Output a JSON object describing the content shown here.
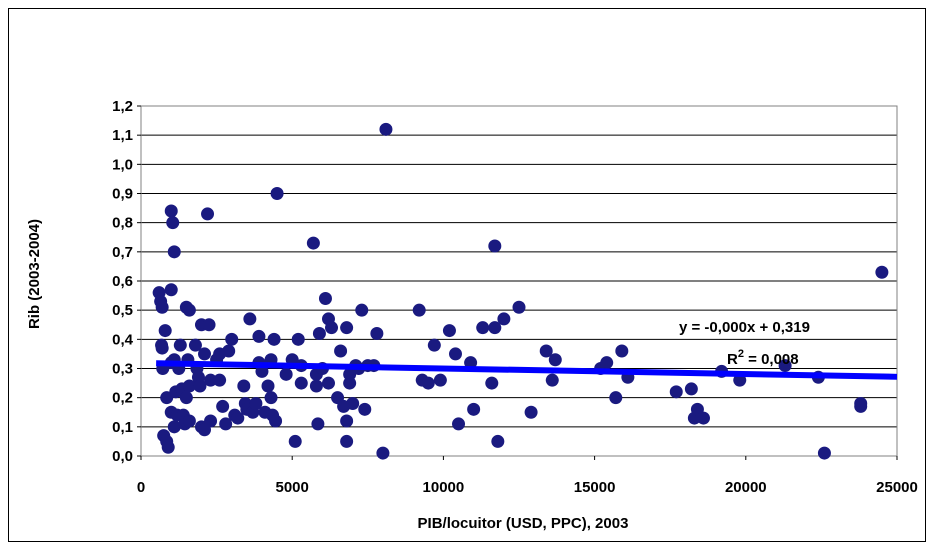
{
  "chart_data": {
    "type": "scatter",
    "title": "",
    "xlabel": "PIB/locuitor (USD, PPC), 2003",
    "ylabel": "Rib (2003-2004)",
    "xlim": [
      0,
      25000
    ],
    "ylim": [
      0,
      1.2
    ],
    "x_ticks": [
      "0",
      "5000",
      "10000",
      "15000",
      "20000",
      "25000"
    ],
    "y_ticks": [
      "0,0",
      "0,1",
      "0,2",
      "0,3",
      "0,4",
      "0,5",
      "0,6",
      "0,7",
      "0,8",
      "0,9",
      "1,0",
      "1,1",
      "1,2"
    ],
    "grid": "horizontal",
    "colors": {
      "points": "#1a1a80",
      "trendline": "#0000ff"
    },
    "trendline": {
      "equation": "y = -0,000x + 0,319",
      "r2_label": "R",
      "r2_sup": "2",
      "r2_value": " = 0,008",
      "intercept": 0.319,
      "slope": -1.9e-06
    },
    "points": [
      [
        600,
        0.56
      ],
      [
        650,
        0.53
      ],
      [
        700,
        0.51
      ],
      [
        680,
        0.38
      ],
      [
        700,
        0.37
      ],
      [
        720,
        0.3
      ],
      [
        750,
        0.07
      ],
      [
        800,
        0.43
      ],
      [
        850,
        0.05
      ],
      [
        900,
        0.03
      ],
      [
        850,
        0.2
      ],
      [
        1000,
        0.84
      ],
      [
        1050,
        0.8
      ],
      [
        1100,
        0.7
      ],
      [
        1000,
        0.57
      ],
      [
        1000,
        0.32
      ],
      [
        1100,
        0.33
      ],
      [
        1150,
        0.22
      ],
      [
        1000,
        0.15
      ],
      [
        1100,
        0.1
      ],
      [
        1200,
        0.14
      ],
      [
        1250,
        0.3
      ],
      [
        1300,
        0.38
      ],
      [
        1350,
        0.23
      ],
      [
        1400,
        0.14
      ],
      [
        1450,
        0.11
      ],
      [
        1500,
        0.12
      ],
      [
        1500,
        0.51
      ],
      [
        1600,
        0.5
      ],
      [
        1550,
        0.33
      ],
      [
        1600,
        0.24
      ],
      [
        1500,
        0.2
      ],
      [
        1600,
        0.12
      ],
      [
        1800,
        0.38
      ],
      [
        1850,
        0.3
      ],
      [
        1900,
        0.27
      ],
      [
        1950,
        0.24
      ],
      [
        2000,
        0.45
      ],
      [
        2100,
        0.35
      ],
      [
        2000,
        0.1
      ],
      [
        2100,
        0.09
      ],
      [
        2200,
        0.83
      ],
      [
        2250,
        0.45
      ],
      [
        2300,
        0.26
      ],
      [
        2300,
        0.12
      ],
      [
        2500,
        0.33
      ],
      [
        2600,
        0.26
      ],
      [
        2600,
        0.35
      ],
      [
        2700,
        0.17
      ],
      [
        2800,
        0.11
      ],
      [
        2900,
        0.36
      ],
      [
        3000,
        0.4
      ],
      [
        3100,
        0.14
      ],
      [
        3200,
        0.13
      ],
      [
        3400,
        0.24
      ],
      [
        3450,
        0.18
      ],
      [
        3500,
        0.16
      ],
      [
        3600,
        0.47
      ],
      [
        3700,
        0.15
      ],
      [
        3800,
        0.18
      ],
      [
        3900,
        0.32
      ],
      [
        3900,
        0.41
      ],
      [
        4000,
        0.29
      ],
      [
        4100,
        0.15
      ],
      [
        4200,
        0.24
      ],
      [
        4300,
        0.33
      ],
      [
        4300,
        0.2
      ],
      [
        4350,
        0.14
      ],
      [
        4400,
        0.4
      ],
      [
        4450,
        0.12
      ],
      [
        4500,
        0.9
      ],
      [
        4800,
        0.28
      ],
      [
        5000,
        0.33
      ],
      [
        5100,
        0.05
      ],
      [
        5200,
        0.4
      ],
      [
        5300,
        0.25
      ],
      [
        5300,
        0.31
      ],
      [
        5700,
        0.73
      ],
      [
        5800,
        0.28
      ],
      [
        5800,
        0.24
      ],
      [
        5850,
        0.11
      ],
      [
        5900,
        0.42
      ],
      [
        6000,
        0.3
      ],
      [
        6100,
        0.54
      ],
      [
        6200,
        0.47
      ],
      [
        6200,
        0.25
      ],
      [
        6300,
        0.44
      ],
      [
        6500,
        0.2
      ],
      [
        6600,
        0.36
      ],
      [
        6700,
        0.17
      ],
      [
        6800,
        0.12
      ],
      [
        6800,
        0.44
      ],
      [
        6800,
        0.05
      ],
      [
        6900,
        0.25
      ],
      [
        6900,
        0.28
      ],
      [
        7000,
        0.18
      ],
      [
        7100,
        0.31
      ],
      [
        7200,
        0.3
      ],
      [
        7300,
        0.5
      ],
      [
        7400,
        0.16
      ],
      [
        7500,
        0.31
      ],
      [
        7800,
        0.42
      ],
      [
        7700,
        0.31
      ],
      [
        8000,
        0.01
      ],
      [
        8100,
        1.12
      ],
      [
        9200,
        0.5
      ],
      [
        9300,
        0.26
      ],
      [
        9500,
        0.25
      ],
      [
        9700,
        0.38
      ],
      [
        9900,
        0.26
      ],
      [
        10200,
        0.43
      ],
      [
        10400,
        0.35
      ],
      [
        10500,
        0.11
      ],
      [
        10900,
        0.32
      ],
      [
        11000,
        0.16
      ],
      [
        11300,
        0.44
      ],
      [
        11600,
        0.25
      ],
      [
        11700,
        0.72
      ],
      [
        11700,
        0.44
      ],
      [
        11800,
        0.05
      ],
      [
        12000,
        0.47
      ],
      [
        12500,
        0.51
      ],
      [
        12900,
        0.15
      ],
      [
        13400,
        0.36
      ],
      [
        13600,
        0.26
      ],
      [
        13700,
        0.33
      ],
      [
        15200,
        0.3
      ],
      [
        15400,
        0.32
      ],
      [
        15700,
        0.2
      ],
      [
        15900,
        0.36
      ],
      [
        16100,
        0.27
      ],
      [
        17700,
        0.22
      ],
      [
        18200,
        0.23
      ],
      [
        18300,
        0.13
      ],
      [
        18400,
        0.16
      ],
      [
        18600,
        0.13
      ],
      [
        19200,
        0.29
      ],
      [
        19800,
        0.26
      ],
      [
        21300,
        0.31
      ],
      [
        22400,
        0.27
      ],
      [
        22600,
        0.01
      ],
      [
        23800,
        0.17
      ],
      [
        23800,
        0.18
      ],
      [
        24500,
        0.63
      ]
    ]
  }
}
